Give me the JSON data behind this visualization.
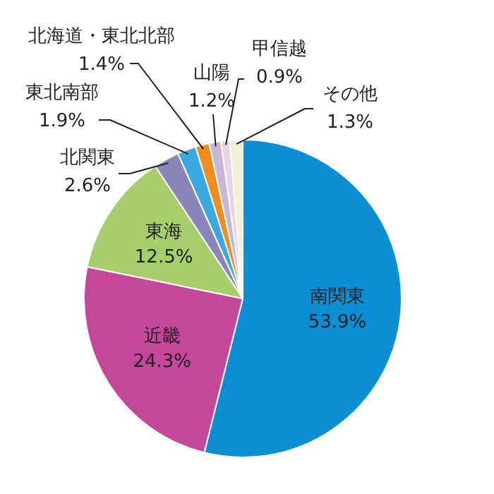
{
  "chart_data": {
    "type": "pie",
    "categories": [
      "南関東",
      "近畿",
      "東海",
      "北関東",
      "東北南部",
      "北海道・東北北部",
      "山陽",
      "甲信越",
      "その他"
    ],
    "values": [
      53.9,
      24.3,
      12.5,
      2.6,
      1.9,
      1.4,
      1.2,
      0.9,
      1.3
    ],
    "value_labels": [
      "53.9%",
      "24.3%",
      "12.5%",
      "2.6%",
      "1.9%",
      "1.4%",
      "1.2%",
      "0.9%",
      "1.3%"
    ],
    "colors": [
      "#0b8fd4",
      "#c4479b",
      "#a6cf6c",
      "#8b86b9",
      "#3aa9e0",
      "#f08b1d",
      "#c7b5da",
      "#ead3e3",
      "#f1f0d3"
    ],
    "legend": false
  }
}
